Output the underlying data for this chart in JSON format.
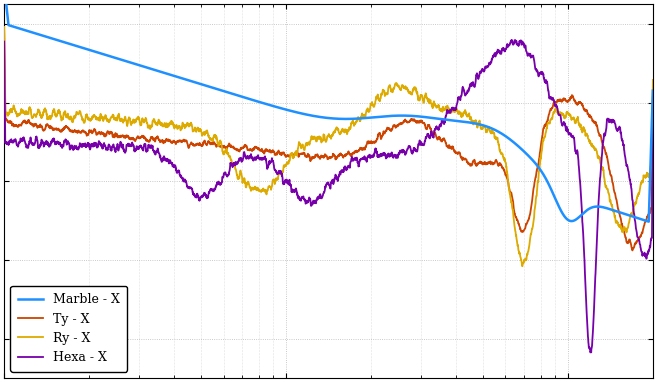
{
  "title": "",
  "xlabel": "",
  "ylabel": "",
  "background_color": "#ffffff",
  "axes_bg_color": "#ffffff",
  "grid_color": "#b0b0b0",
  "lines": [
    {
      "label": "Marble - X",
      "color": "#1e90ff"
    },
    {
      "label": "Ty - X",
      "color": "#cc4400"
    },
    {
      "label": "Ry - X",
      "color": "#ddaa00"
    },
    {
      "label": "Hexa - X",
      "color": "#7700aa"
    }
  ],
  "legend_facecolor": "#ffffff",
  "legend_edgecolor": "#000000",
  "legend_textcolor": "#000000",
  "freq_min": 1,
  "freq_max": 200,
  "ymin": -110,
  "ymax": -15,
  "figsize": [
    6.57,
    3.82
  ],
  "dpi": 100
}
